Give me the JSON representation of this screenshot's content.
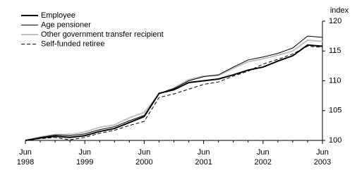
{
  "chart_data": {
    "type": "line",
    "y_axis_label": "index",
    "categories": [
      "Jun 1998",
      null,
      null,
      null,
      "Jun 1999",
      null,
      null,
      null,
      "Jun 2000",
      null,
      null,
      null,
      "Jun 2001",
      null,
      null,
      null,
      "Jun 2002",
      null,
      null,
      null,
      "Jun 2003"
    ],
    "series": [
      {
        "name": "Employee",
        "color": "#000000",
        "line_width": 2,
        "dashed": false,
        "values": [
          100,
          100.4,
          100.7,
          100.5,
          100.8,
          101.5,
          102,
          103,
          104,
          107.9,
          108.5,
          109.7,
          110,
          110.3,
          111,
          111.8,
          112.3,
          113.3,
          114.2,
          116,
          115.8
        ]
      },
      {
        "name": "Age pensioner",
        "color": "#000000",
        "line_width": 1,
        "dashed": false,
        "values": [
          100,
          100.5,
          100.9,
          100.8,
          101.1,
          101.8,
          102.3,
          103.3,
          104.2,
          107.9,
          108.7,
          110,
          110.7,
          111,
          112.3,
          113.5,
          114,
          114.6,
          115.5,
          117.5,
          117.3
        ]
      },
      {
        "name": "Other government transfer recipient",
        "color": "#c0c0c0",
        "line_width": 2,
        "dashed": false,
        "values": [
          100,
          100.6,
          101,
          101,
          101.4,
          102.2,
          102.6,
          103.8,
          104.7,
          107.8,
          108.8,
          110.2,
          110.8,
          110.9,
          112.1,
          113.2,
          113.7,
          114.3,
          115,
          116.8,
          116.6
        ]
      },
      {
        "name": "Self-funded retiree",
        "color": "#000000",
        "line_width": 1,
        "dashed": true,
        "values": [
          100,
          100.3,
          100.5,
          100.1,
          100.5,
          101.2,
          101.7,
          102.5,
          103.2,
          107.2,
          107.8,
          108.6,
          109.4,
          109.8,
          110.8,
          111.6,
          112.8,
          113.6,
          114.5,
          115.8,
          115.6
        ]
      }
    ],
    "ylim": [
      100,
      120
    ],
    "yticks": [
      100,
      105,
      110,
      115,
      120
    ],
    "legend": "top-left",
    "grid": false
  }
}
